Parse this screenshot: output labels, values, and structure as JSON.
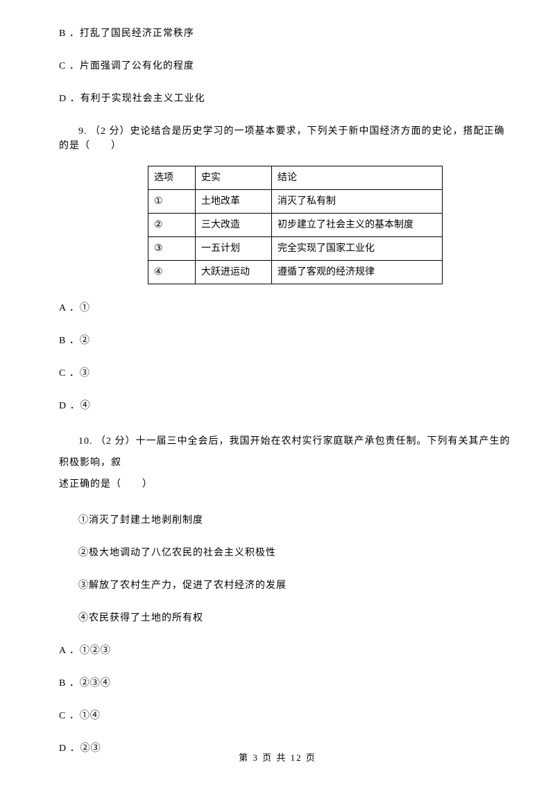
{
  "q8": {
    "optB": "B ．打乱了国民经济正常秩序",
    "optC": "C ．片面强调了公有化的程度",
    "optD": "D ．有利于实现社会主义工业化"
  },
  "q9": {
    "stem": "9. （2 分）史论结合是历史学习的一项基本要求，下列关于新中国经济方面的史论，搭配正确的是（　　）",
    "table": {
      "headers": [
        "选项",
        "史实",
        "结论"
      ],
      "rows": [
        [
          "①",
          "土地改革",
          "消灭了私有制"
        ],
        [
          "②",
          "三大改造",
          "初步建立了社会主义的基本制度"
        ],
        [
          "③",
          "一五计划",
          "完全实现了国家工业化"
        ],
        [
          "④",
          "大跃进运动",
          "遵循了客观的经济规律"
        ]
      ]
    },
    "optA": "A ．①",
    "optB": "B ．②",
    "optC": "C ．③",
    "optD": "D ．④"
  },
  "q10": {
    "stem_part1": "10. （2 分）十一届三中全会后，我国开始在农村实行家庭联产承包责任制。下列有关其产生的积极影响，叙",
    "stem_part2": "述正确的是（　　）",
    "sub1": "①消灭了封建土地剥削制度",
    "sub2": "②极大地调动了八亿农民的社会主义积极性",
    "sub3": "③解放了农村生产力，促进了农村经济的发展",
    "sub4": "④农民获得了土地的所有权",
    "optA": "A ．①②③",
    "optB": "B ．②③④",
    "optC": "C ．①④",
    "optD": "D ．②③"
  },
  "footer": "第 3 页 共 12 页"
}
